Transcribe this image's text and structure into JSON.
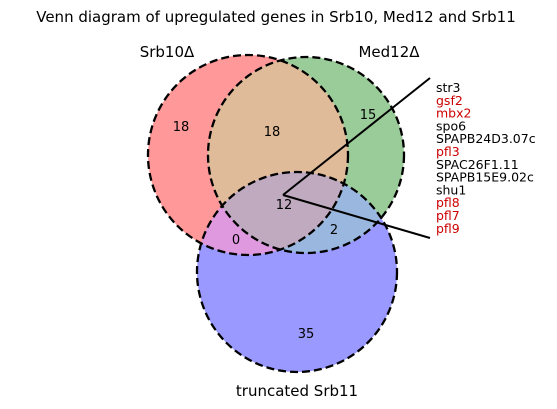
{
  "title": "Venn diagram of upregulated genes in Srb10, Med12 and Srb11",
  "sets": {
    "srb10": {
      "label": "Srb10Δ",
      "color": "#ff9999"
    },
    "med12": {
      "label": "Med12Δ",
      "color": "#9acc9a"
    },
    "srb11": {
      "label": "truncated Srb11",
      "color": "#9999ff"
    }
  },
  "regions": {
    "srb10_only": "18",
    "srb10_med12": "18",
    "med12_only": "15",
    "all_three": "12",
    "srb10_srb11": "0",
    "med12_srb11": "2",
    "srb11_only": "35"
  },
  "intersection_colors": {
    "srb10_med12": "#e0bb99",
    "srb10_srb11": "#df99df",
    "med12_srb11": "#9ab8df",
    "all_three": "#bfaabf"
  },
  "genes": [
    {
      "name": "str3",
      "highlight": false
    },
    {
      "name": "gsf2",
      "highlight": true
    },
    {
      "name": "mbx2",
      "highlight": true
    },
    {
      "name": "spo6",
      "highlight": false
    },
    {
      "name": "SPAPB24D3.07c",
      "highlight": false
    },
    {
      "name": "pfl3",
      "highlight": true
    },
    {
      "name": "SPAC26F1.11",
      "highlight": false
    },
    {
      "name": "SPAPB15E9.02c",
      "highlight": false
    },
    {
      "name": "shu1",
      "highlight": false
    },
    {
      "name": "pfl8",
      "highlight": true
    },
    {
      "name": "pfl7",
      "highlight": true
    },
    {
      "name": "pfl9",
      "highlight": true
    }
  ],
  "gene_colors": {
    "normal": "#000000",
    "highlight": "#cc0000"
  }
}
